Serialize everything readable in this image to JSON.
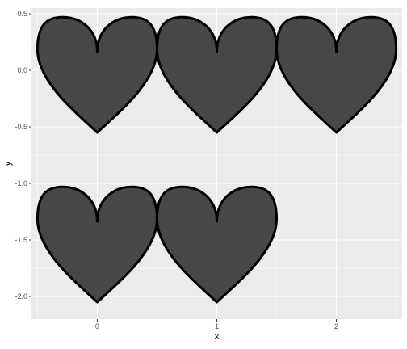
{
  "colors": {
    "panel_background": "#ebebeb",
    "grid_major": "#ffffff",
    "heart_fill": "#474747",
    "heart_outline": "#000000",
    "tick_text": "#4d4d4d"
  },
  "chart_data": {
    "type": "scatter",
    "marker": "heart",
    "xlabel": "x",
    "ylabel": "y",
    "xlim": [
      -0.55,
      2.55
    ],
    "ylim": [
      -2.2,
      0.55
    ],
    "x_ticks": [
      {
        "value": 0,
        "label": "0"
      },
      {
        "value": 1,
        "label": "1"
      },
      {
        "value": 2,
        "label": "2"
      }
    ],
    "y_ticks": [
      {
        "value": 0.5,
        "label": "0.5"
      },
      {
        "value": 0.0,
        "label": "0.0"
      },
      {
        "value": -0.5,
        "label": "-0.5"
      },
      {
        "value": -1.0,
        "label": "-1.0"
      },
      {
        "value": -1.5,
        "label": "-1.5"
      },
      {
        "value": -2.0,
        "label": "-2.0"
      }
    ],
    "grid": true,
    "legend": "none",
    "hearts": [
      {
        "x": 0,
        "y_top": 0.47,
        "y_bottom": -0.55,
        "x_halfwidth": 0.5
      },
      {
        "x": 1,
        "y_top": 0.47,
        "y_bottom": -0.55,
        "x_halfwidth": 0.5
      },
      {
        "x": 2,
        "y_top": 0.47,
        "y_bottom": -0.55,
        "x_halfwidth": 0.5
      },
      {
        "x": 0,
        "y_top": -1.03,
        "y_bottom": -2.05,
        "x_halfwidth": 0.5
      },
      {
        "x": 1,
        "y_top": -1.03,
        "y_bottom": -2.05,
        "x_halfwidth": 0.5
      }
    ]
  }
}
